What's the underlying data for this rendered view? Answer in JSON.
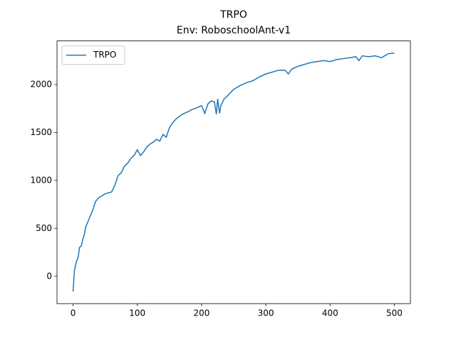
{
  "chart_data": {
    "type": "line",
    "title": "TRPO",
    "subtitle": "Env: RoboschoolAnt-v1",
    "x": [
      0,
      2,
      5,
      8,
      10,
      13,
      15,
      18,
      20,
      25,
      30,
      35,
      40,
      45,
      50,
      55,
      60,
      65,
      70,
      75,
      80,
      85,
      90,
      95,
      100,
      105,
      110,
      115,
      120,
      125,
      130,
      135,
      140,
      145,
      150,
      155,
      160,
      170,
      180,
      185,
      190,
      200,
      205,
      210,
      215,
      220,
      223,
      225,
      228,
      230,
      235,
      240,
      250,
      260,
      270,
      280,
      290,
      300,
      310,
      320,
      330,
      335,
      340,
      350,
      360,
      370,
      380,
      390,
      400,
      410,
      420,
      430,
      440,
      445,
      450,
      460,
      470,
      480,
      490,
      500
    ],
    "series": [
      {
        "name": "TRPO",
        "color": "#1f77b4",
        "values": [
          -160,
          50,
          150,
          200,
          300,
          320,
          380,
          450,
          520,
          600,
          680,
          780,
          820,
          840,
          860,
          870,
          880,
          950,
          1050,
          1080,
          1150,
          1180,
          1230,
          1260,
          1320,
          1260,
          1300,
          1350,
          1380,
          1400,
          1430,
          1410,
          1480,
          1450,
          1550,
          1600,
          1640,
          1690,
          1720,
          1740,
          1750,
          1780,
          1700,
          1800,
          1830,
          1820,
          1690,
          1850,
          1700,
          1780,
          1850,
          1880,
          1950,
          1990,
          2020,
          2040,
          2080,
          2110,
          2130,
          2150,
          2150,
          2110,
          2160,
          2190,
          2210,
          2230,
          2240,
          2250,
          2240,
          2260,
          2270,
          2280,
          2290,
          2250,
          2300,
          2290,
          2300,
          2280,
          2320,
          2330
        ]
      }
    ],
    "xlim": [
      -25,
      525
    ],
    "ylim": [
      -285,
      2455
    ],
    "xticks": [
      0,
      100,
      200,
      300,
      400,
      500
    ],
    "yticks": [
      0,
      500,
      1000,
      1500,
      2000
    ],
    "legend": "upper left"
  }
}
